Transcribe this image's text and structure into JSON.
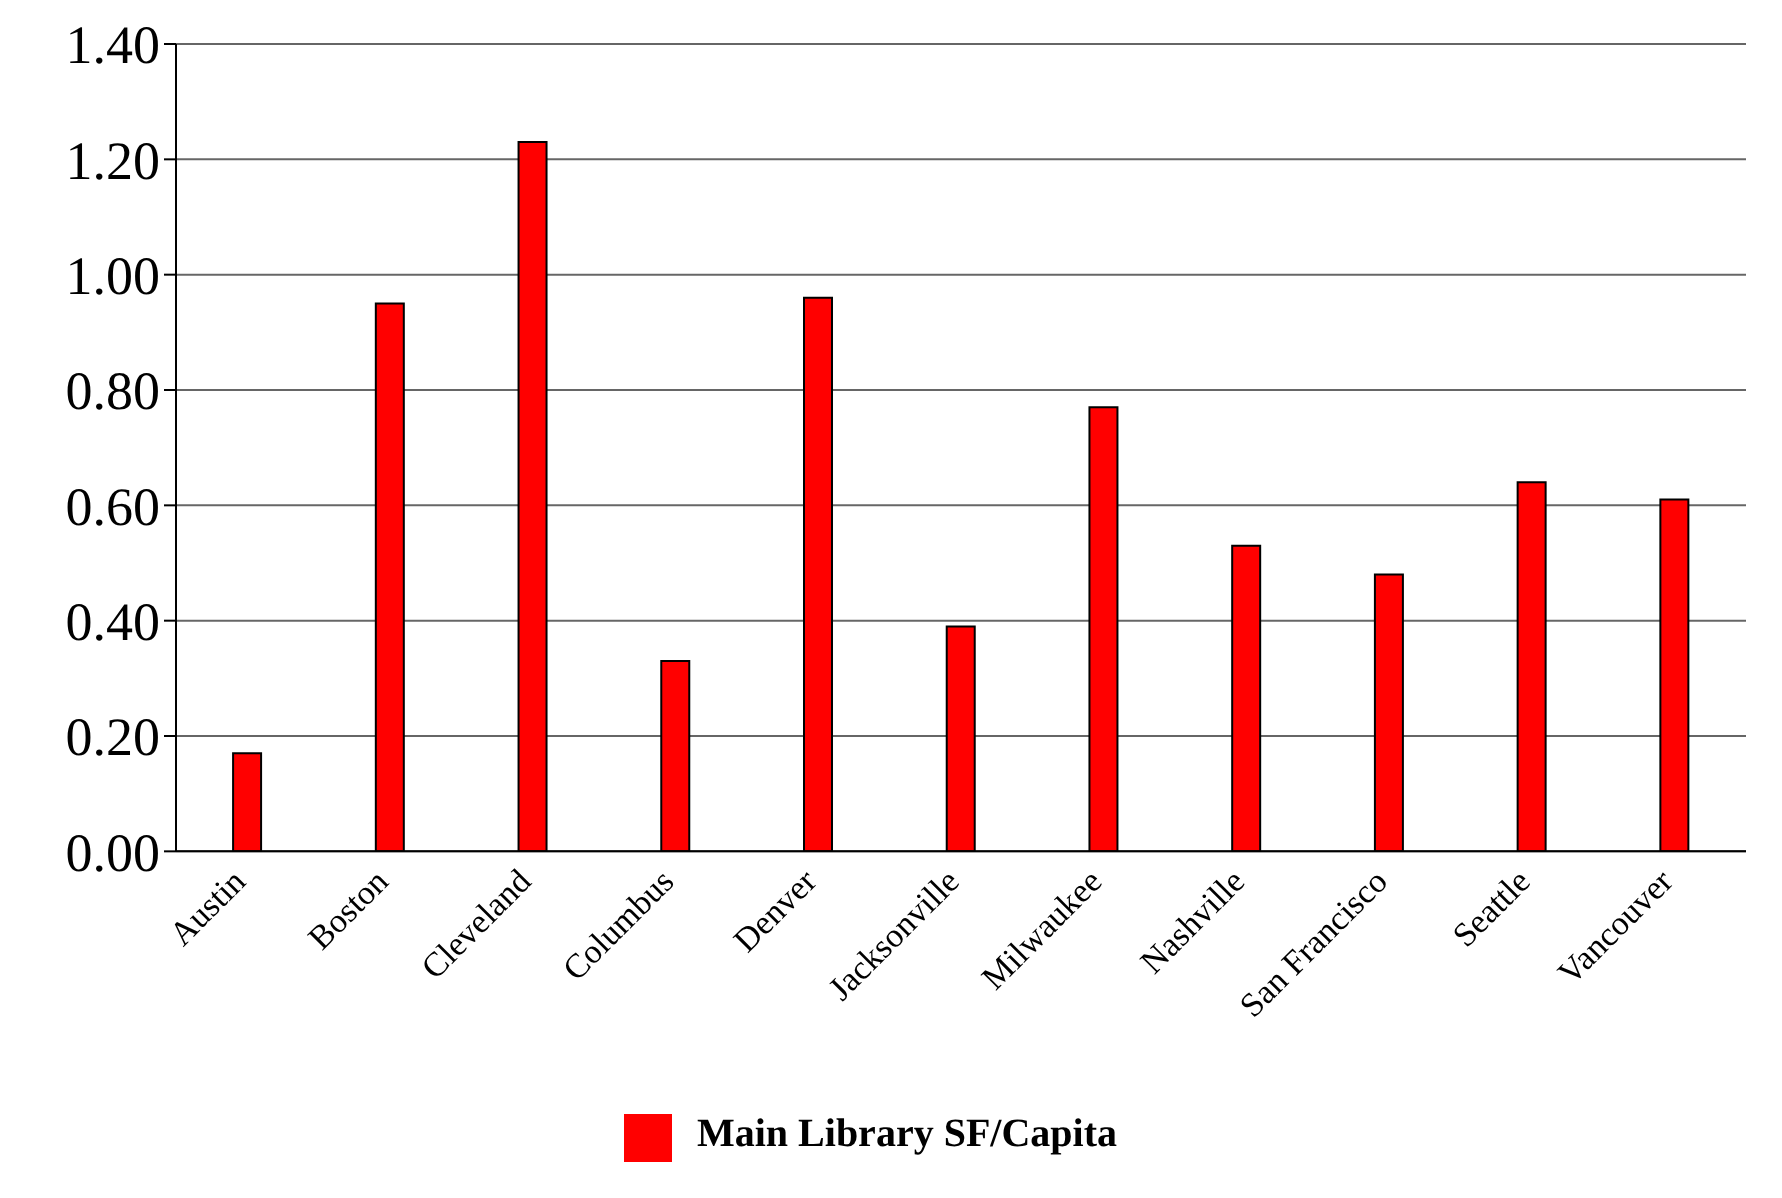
{
  "chart_data": {
    "type": "bar",
    "categories": [
      "Austin",
      "Boston",
      "Cleveland",
      "Columbus",
      "Denver",
      "Jacksonville",
      "Milwaukee",
      "Nashville",
      "San Francisco",
      "Seattle",
      "Vancouver"
    ],
    "series": [
      {
        "name": "Main Library SF/Capita",
        "color": "#ff0000",
        "values": [
          0.17,
          0.95,
          1.23,
          0.33,
          0.96,
          0.39,
          0.77,
          0.53,
          0.48,
          0.64,
          0.61
        ]
      }
    ],
    "ylim": [
      0,
      1.4
    ],
    "yticks": [
      {
        "value": 0,
        "label": "0.00"
      },
      {
        "value": 0.2,
        "label": "0.20"
      },
      {
        "value": 0.4,
        "label": "0.40"
      },
      {
        "value": 0.6,
        "label": "0.60"
      },
      {
        "value": 0.8,
        "label": "0.80"
      },
      {
        "value": 1,
        "label": "1.00"
      },
      {
        "value": 1.2,
        "label": "1.20"
      },
      {
        "value": 1.4,
        "label": "1.40"
      }
    ],
    "grid": "y",
    "legend": "bottom"
  }
}
